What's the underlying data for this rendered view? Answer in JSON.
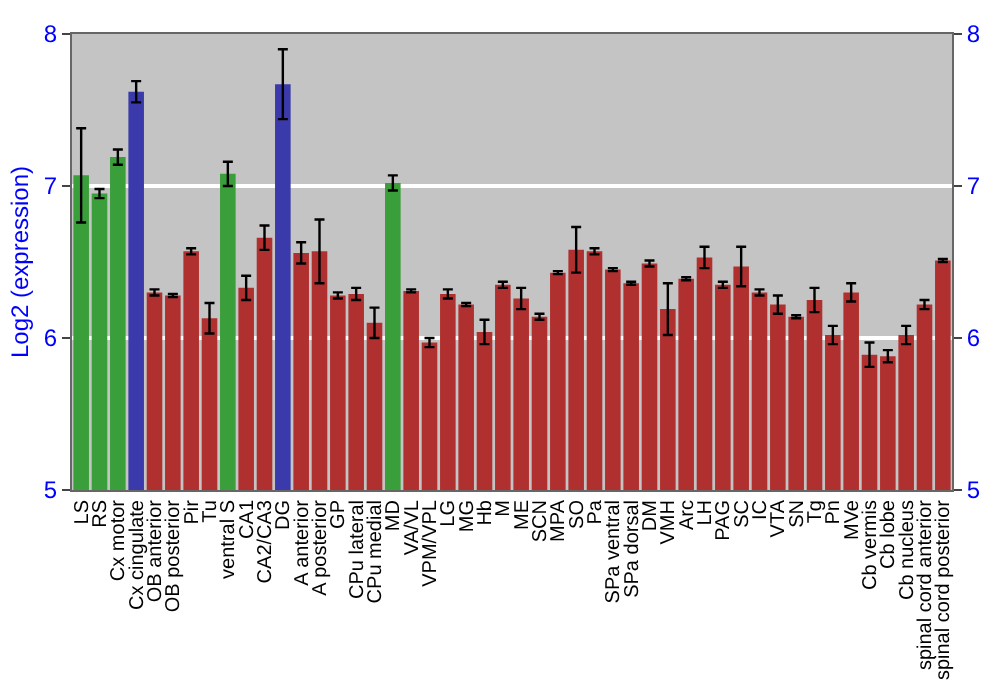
{
  "chart_data": {
    "type": "bar",
    "ylabel": "Log2 (expression)",
    "categories": [
      "LS",
      "RS",
      "Cx motor",
      "Cx cingulate",
      "OB anterior",
      "OB posterior",
      "Pir",
      "Tu",
      "ventral S",
      "CA1",
      "CA2/CA3",
      "DG",
      "A anterior",
      "A posterior",
      "GP",
      "CPu lateral",
      "CPu medial",
      "MD",
      "VA/VL",
      "VPM/VPL",
      "LG",
      "MG",
      "Hb",
      "M",
      "ME",
      "SCN",
      "MPA",
      "SO",
      "Pa",
      "SPa ventral",
      "SPa dorsal",
      "DM",
      "VMH",
      "Arc",
      "LH",
      "PAG",
      "SC",
      "IC",
      "VTA",
      "SN",
      "Tg",
      "Pn",
      "MVe",
      "Cb vermis",
      "Cb lobe",
      "Cb nucleus",
      "spinal cord anterior",
      "spinal cord posterior"
    ],
    "values": [
      7.07,
      6.95,
      7.19,
      7.62,
      6.3,
      6.28,
      6.57,
      6.13,
      7.08,
      6.33,
      6.66,
      7.67,
      6.56,
      6.57,
      6.28,
      6.29,
      6.1,
      7.02,
      6.31,
      5.97,
      6.29,
      6.22,
      6.04,
      6.35,
      6.26,
      6.14,
      6.43,
      6.58,
      6.57,
      6.45,
      6.36,
      6.49,
      6.19,
      6.39,
      6.53,
      6.35,
      6.47,
      6.3,
      6.22,
      6.14,
      6.25,
      6.02,
      6.3,
      5.89,
      5.88,
      6.02,
      6.22,
      6.51
    ],
    "errors": [
      0.31,
      0.03,
      0.05,
      0.07,
      0.02,
      0.01,
      0.02,
      0.1,
      0.08,
      0.08,
      0.08,
      0.23,
      0.07,
      0.21,
      0.02,
      0.04,
      0.1,
      0.05,
      0.01,
      0.03,
      0.03,
      0.01,
      0.08,
      0.02,
      0.07,
      0.02,
      0.01,
      0.15,
      0.02,
      0.01,
      0.01,
      0.02,
      0.17,
      0.01,
      0.07,
      0.02,
      0.13,
      0.02,
      0.06,
      0.01,
      0.08,
      0.06,
      0.06,
      0.08,
      0.04,
      0.06,
      0.03,
      0.01
    ],
    "colors": [
      "#3a9e3a",
      "#3a9e3a",
      "#3a9e3a",
      "#3a3aaa",
      "#b03030",
      "#b03030",
      "#b03030",
      "#b03030",
      "#3a9e3a",
      "#b03030",
      "#b03030",
      "#3a3aaa",
      "#b03030",
      "#b03030",
      "#b03030",
      "#b03030",
      "#b03030",
      "#3a9e3a",
      "#b03030",
      "#b03030",
      "#b03030",
      "#b03030",
      "#b03030",
      "#b03030",
      "#b03030",
      "#b03030",
      "#b03030",
      "#b03030",
      "#b03030",
      "#b03030",
      "#b03030",
      "#b03030",
      "#b03030",
      "#b03030",
      "#b03030",
      "#b03030",
      "#b03030",
      "#b03030",
      "#b03030",
      "#b03030",
      "#b03030",
      "#b03030",
      "#b03030",
      "#b03030",
      "#b03030",
      "#b03030",
      "#b03030",
      "#b03030"
    ],
    "ylim": [
      5,
      8
    ],
    "yticks": [
      5,
      6,
      7,
      8
    ],
    "y2lim": [
      5,
      8
    ],
    "y2ticks": [
      5,
      6,
      7,
      8
    ],
    "grid": "y",
    "legend": false
  }
}
